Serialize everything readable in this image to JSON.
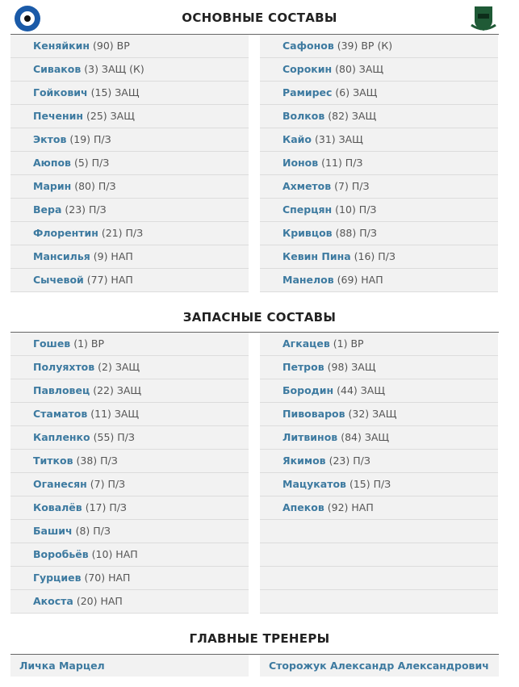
{
  "colors": {
    "name": "#3d7aa0",
    "row_bg": "#f2f2f2",
    "home_logo": "#1a5aa8",
    "away_logo": "#1f5a36"
  },
  "home_team": {
    "logo_icon": "orenburg-crest"
  },
  "away_team": {
    "logo_icon": "krasnodar-crest"
  },
  "sections": {
    "starting": "ОСНОВНЫЕ СОСТАВЫ",
    "subs": "ЗАПАСНЫЕ СОСТАВЫ",
    "coaches": "ГЛАВНЫЕ ТРЕНЕРЫ"
  },
  "starting": {
    "home": [
      {
        "name": "Кеняйкин",
        "info": "(90) ВР"
      },
      {
        "name": "Сиваков",
        "info": "(3) ЗАЩ (К)"
      },
      {
        "name": "Гойкович",
        "info": "(15) ЗАЩ"
      },
      {
        "name": "Печенин",
        "info": "(25) ЗАЩ"
      },
      {
        "name": "Эктов",
        "info": "(19) П/З"
      },
      {
        "name": "Аюпов",
        "info": "(5) П/З"
      },
      {
        "name": "Марин",
        "info": "(80) П/З"
      },
      {
        "name": "Вера",
        "info": "(23) П/З"
      },
      {
        "name": "Флорентин",
        "info": "(21) П/З"
      },
      {
        "name": "Мансилья",
        "info": "(9) НАП"
      },
      {
        "name": "Сычевой",
        "info": "(77) НАП"
      }
    ],
    "away": [
      {
        "name": "Сафонов",
        "info": "(39) ВР (К)"
      },
      {
        "name": "Сорокин",
        "info": "(80) ЗАЩ"
      },
      {
        "name": "Рамирес",
        "info": "(6) ЗАЩ"
      },
      {
        "name": "Волков",
        "info": "(82) ЗАЩ"
      },
      {
        "name": "Кайо",
        "info": "(31) ЗАЩ"
      },
      {
        "name": "Ионов",
        "info": "(11) П/З"
      },
      {
        "name": "Ахметов",
        "info": "(7) П/З"
      },
      {
        "name": "Сперцян",
        "info": "(10) П/З"
      },
      {
        "name": "Кривцов",
        "info": "(88) П/З"
      },
      {
        "name": "Кевин Пина",
        "info": "(16) П/З"
      },
      {
        "name": "Манелов",
        "info": "(69) НАП"
      }
    ]
  },
  "subs": {
    "home": [
      {
        "name": "Гошев",
        "info": "(1) ВР"
      },
      {
        "name": "Полуяхтов",
        "info": "(2) ЗАЩ"
      },
      {
        "name": "Павловец",
        "info": "(22) ЗАЩ"
      },
      {
        "name": "Стаматов",
        "info": "(11) ЗАЩ"
      },
      {
        "name": "Капленко",
        "info": "(55) П/З"
      },
      {
        "name": "Титков",
        "info": "(38) П/З"
      },
      {
        "name": "Оганесян",
        "info": "(7) П/З"
      },
      {
        "name": "Ковалёв",
        "info": "(17) П/З"
      },
      {
        "name": "Башич",
        "info": "(8) П/З"
      },
      {
        "name": "Воробьёв",
        "info": "(10) НАП"
      },
      {
        "name": "Гурциев",
        "info": "(70) НАП"
      },
      {
        "name": "Акоста",
        "info": "(20) НАП"
      }
    ],
    "away": [
      {
        "name": "Агкацев",
        "info": "(1) ВР"
      },
      {
        "name": "Петров",
        "info": "(98) ЗАЩ"
      },
      {
        "name": "Бородин",
        "info": "(44) ЗАЩ"
      },
      {
        "name": "Пивоваров",
        "info": "(32) ЗАЩ"
      },
      {
        "name": "Литвинов",
        "info": "(84) ЗАЩ"
      },
      {
        "name": "Якимов",
        "info": "(23) П/З"
      },
      {
        "name": "Мацукатов",
        "info": "(15) П/З"
      },
      {
        "name": "Апеков",
        "info": "(92) НАП"
      }
    ]
  },
  "coaches": {
    "home": "Личка Марцел",
    "away": "Сторожук Александр Александрович"
  }
}
